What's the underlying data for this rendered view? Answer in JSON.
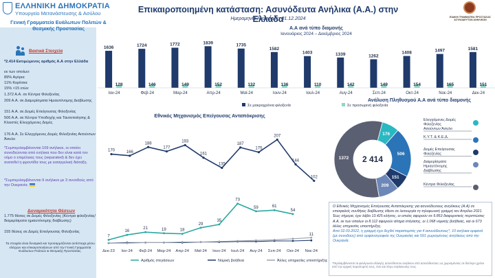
{
  "header": {
    "gov_name": "ΕΛΛΗΝΙΚΗ ΔΗΜΟΚΡΑΤΙΑ",
    "ministry": "Υπουργείο Μετανάστευσης & Ασύλου",
    "title": "Επικαιροποιημένη κατάσταση: Ασυνόδευτα Ανήλικα (Α.Α.) στην Ελλάδα",
    "report_date": "Ημερομηνία Αναφοράς: 01.12.2024",
    "right_logo_text": "ΕΙΔΙΚΗ ΓΡΑΜΜΑΤΕΙΑ ΠΡΟΣΤΑΣΙΑΣ ΑΣΥΝΟΔΕΥΤΩΝ ΑΝΗΛΙΚΩΝ"
  },
  "left_panel": {
    "secretariat": "Γενική Γραμματεία Ευάλωτων Πολιτών & Θεσμικής Προστασίας",
    "basic_title": "Βασικά Στοιχεία",
    "total_line": "*2.414 Εκτιμώμενος αριθμός Α.Α στην Ελλάδα",
    "of_which": "εκ των οποίων:",
    "boys": "89% Αγόρια",
    "girls": "11% Κορίτσια",
    "under15": "15% <15 ετών",
    "shelters": "1.372 Α.Α. σε Κέντρα Φιλοξενίας",
    "apartments": "209 Α.Α. σε Διαμερίσματα Ημιαυτόνομης Διαβίωσης",
    "emergency": "151 Α.Α. σε Δομές Επείγουσας Φιλοξενίας",
    "ric": "506 Α.Α. σε Κέντρα Υποδοχής και Ταυτοποίησης & Κλειστές Ελεγχόμενες Δομές",
    "safe_zones": "176 Α.Α. Σε Ελεγχόμενες Δομές Φιλοξενίας Αιτούντων Άσυλο",
    "note1": "*Συμπεριλαμβάνονται 109 ανήλικοι, οι οποίοι συνοδεύονται από ενήλικα που δεν είναι κατά τον νόμο ο επιμέλειας τους (separated) & δεν έχει ανατεθεί η φροντίδα τους με εισαγγελική διάταξη.",
    "note2": "*Συμπεριλαμβάνονται 9 ανήλικοι με 3 συνοδούς από την Ουκρανία.",
    "capacity_title": "Δυναμικότητα Θέσεων",
    "cap1": "1.775 θέσεις σε Δομές Φιλοξενίας (Κέντρα φιλοξενίας/διαμερίσματα ημιαυτόνομης διαβίωσης)",
    "cap2": "155 θέσεις σε Δομές Επείγουσας Φιλοξενίας",
    "footer": "Τα στοιχεία είναι δυναμικά και προσαρμόζονται αντίστοιχα μέσω ελέγχων και επικαιροποιήσεων από την Γενική Γραμματεία Ευάλωτων Πολιτών & Θεσμικής Προστασίας."
  },
  "chart_data": [
    {
      "type": "bar",
      "title": "Α.Α ανά τύπο διαμονής",
      "subtitle": "Ιανουάριος 2024 – Δεκέμβριος 2024",
      "categories": [
        "Ιαν-24",
        "Φεβ-24",
        "Μαρ-24",
        "Απρ-24",
        "Μαϊ-24",
        "Ιουν-24",
        "Ιουλ-24",
        "Αυγ-24",
        "Σεπ-24",
        "Οκτ-24",
        "Νοε-24",
        "Δεκ-24"
      ],
      "series": [
        {
          "name": "Σε μακροχρόνια φιλοξενία",
          "color": "#1f3a6b",
          "values": [
            1636,
            1724,
            1772,
            1839,
            1735,
            1582,
            1403,
            1339,
            1262,
            1408,
            1497,
            1581
          ]
        },
        {
          "name": "Σε προσωρινή φιλοξενία",
          "color": "#8fd6c6",
          "values": [
            128,
            146,
            149,
            152,
            132,
            136,
            110,
            142,
            149,
            154,
            165,
            151
          ]
        }
      ],
      "ylim": [
        0,
        2000
      ]
    },
    {
      "type": "line",
      "title": "Εθνικός Μηχανισμός Επείγουσας Ανταπόκρισης",
      "series": [
        {
          "name": "",
          "color": "#1f3a6b",
          "values": [
            170,
            166,
            188,
            177,
            193,
            161,
            135,
            187,
            175,
            207,
            144,
            102
          ]
        }
      ],
      "ylim": [
        80,
        220
      ]
    },
    {
      "type": "line",
      "categories": [
        "Δεκ-23",
        "Ιαν-24",
        "Φεβ-24",
        "Μαρ-24",
        "Απρ-24",
        "Μαϊ-24",
        "Ιουν-24",
        "Ιουλ-24",
        "Αυγ-24",
        "Σεπ-24",
        "Οκτ-24",
        "Νοε-24"
      ],
      "series": [
        {
          "name": "Αριθμός στεγάσεων",
          "color": "#2aa8a0",
          "values": [
            7,
            16,
            21,
            19,
            18,
            29,
            35,
            73,
            59,
            61,
            54,
            null
          ]
        },
        {
          "name": "Νομική βοήθεια",
          "color": "#1f3a6b",
          "values": [
            1,
            2,
            2,
            2,
            2,
            3,
            3,
            4,
            4,
            5,
            5,
            6
          ]
        },
        {
          "name": "Άλλες υπηρεσίες υποστήριξης",
          "color": "#9aa3ad",
          "values": [
            1,
            1,
            2,
            2,
            3,
            3,
            4,
            5,
            6,
            7,
            9,
            11
          ]
        }
      ],
      "ylim": [
        0,
        80
      ],
      "point_labels": [
        7,
        16,
        21,
        19,
        18,
        29,
        35,
        73,
        59,
        61,
        54,
        11
      ]
    },
    {
      "type": "pie",
      "title": "Ανάλυση Πληθυσμού Α.Α ανά τύπο διαμονής",
      "center_label": "2 414",
      "slices": [
        {
          "label": "Ελεγχόμενες Δομές Φιλοξενίας Αιτούντων Άσυλο",
          "value": 176,
          "color": "#2ab8c2"
        },
        {
          "label": "Κ.Υ.Τ. & Κ.Ε.Δ.",
          "value": 506,
          "color": "#2b74b8"
        },
        {
          "label": "Δομές Επείγουσας Φιλοξενίας",
          "value": 151,
          "color": "#1f3a6b"
        },
        {
          "label": "Διαμερίσματα Ημιαυτόνομης Διαβίωσης",
          "value": 209,
          "color": "#6d88b8"
        },
        {
          "label": "Κέντρα Φιλοξενίας",
          "value": 1372,
          "color": "#5a5f72"
        }
      ]
    }
  ],
  "info_box": {
    "p1": "Ο Εθνικός Μηχανισμός Επείγουσας Ανταπόκρισης για ασυνόδευτους ανηλίκους (Α.Α) σε επισφαλείς συνθήκες διαβίωσης έθεσε σε λειτουργία τη τηλεφωνική γραμμή τον Απρίλιο 2021. Έως σήμερα, έχει λάβει 13.425 κλήσεις, οι οποίες αφορούν σε 9.853 διαφορετικές περιπτώσεις Α.Α, εκ των οποίων οι 8.112 αφορούν αίτημα στέγασης, οι 1.068 νομικής βοήθειας, και οι 673 άλλες υπηρεσίες υποστήριξης.",
    "p2": "Από 02.03.2022, η γραμμή έχει δεχθεί παραπομπές για 4 ασυνόδευτους*, 10 ανήλικα ορφανά (με συνοδούς) από ορφανοτροφείο της Ουκρανίας και 591 χωρισμένους ανηλίκους από την Ουκρανία.",
    "note": "*Περιλαμβάνονται τα φανέρωσα αλλαγής ασυνόδευτου ανηλίκου από ασυνόδευτους ως χωρισμένους σε δεύτερο χρόνο από την αρχική παραπομπή τους, όσο και λόγω ενηλικίωσης τους."
  }
}
